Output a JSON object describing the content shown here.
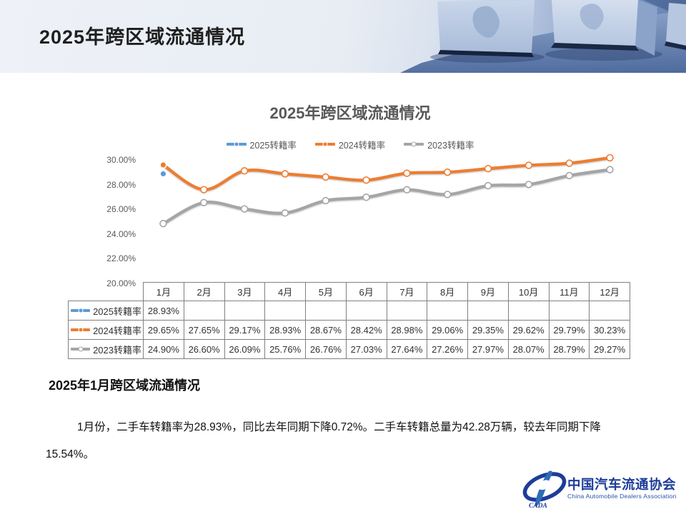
{
  "header": {
    "title": "2025年跨区域流通情况"
  },
  "chart_data": {
    "type": "line",
    "title": "2025年跨区域流通情况",
    "categories": [
      "1月",
      "2月",
      "3月",
      "4月",
      "5月",
      "6月",
      "7月",
      "8月",
      "9月",
      "10月",
      "11月",
      "12月"
    ],
    "series": [
      {
        "name": "2025转籍率",
        "color": "#5B9BD5",
        "marker": "filled",
        "values": [
          28.93,
          null,
          null,
          null,
          null,
          null,
          null,
          null,
          null,
          null,
          null,
          null
        ]
      },
      {
        "name": "2024转籍率",
        "color": "#ED7D31",
        "marker": "first-filled",
        "values": [
          29.65,
          27.65,
          29.17,
          28.93,
          28.67,
          28.42,
          28.98,
          29.06,
          29.35,
          29.62,
          29.79,
          30.23
        ]
      },
      {
        "name": "2023转籍率",
        "color": "#A5A5A5",
        "marker": "hollow",
        "values": [
          24.9,
          26.6,
          26.09,
          25.76,
          26.76,
          27.03,
          27.64,
          27.26,
          27.97,
          28.07,
          28.79,
          29.27
        ]
      }
    ],
    "ylim": [
      20,
      30
    ],
    "yticks": [
      "30.00%",
      "28.00%",
      "26.00%",
      "24.00%",
      "22.00%",
      "20.00%"
    ],
    "grid": false,
    "legend_position": "top",
    "xlabel": "",
    "ylabel": ""
  },
  "table": {
    "rows": [
      {
        "label": "2025转籍率",
        "values": [
          "28.93%",
          "",
          "",
          "",
          "",
          "",
          "",
          "",
          "",
          "",
          "",
          ""
        ]
      },
      {
        "label": "2024转籍率",
        "values": [
          "29.65%",
          "27.65%",
          "29.17%",
          "28.93%",
          "28.67%",
          "28.42%",
          "28.98%",
          "29.06%",
          "29.35%",
          "29.62%",
          "29.79%",
          "30.23%"
        ]
      },
      {
        "label": "2023转籍率",
        "values": [
          "24.90%",
          "26.60%",
          "26.09%",
          "25.76%",
          "26.76%",
          "27.03%",
          "27.64%",
          "27.26%",
          "27.97%",
          "28.07%",
          "28.79%",
          "29.27%"
        ]
      }
    ]
  },
  "body": {
    "heading": "2025年1月跨区域流通情况",
    "paragraph": "1月份，二手车转籍率为28.93%，同比去年同期下降0.72%。二手车转籍总量为42.28万辆，较去年同期下降15.54%。"
  },
  "footer": {
    "logo_mark": "CADA",
    "logo_text_cn": "中国汽车流通协会",
    "logo_text_en": "China Automobile Dealers Association"
  },
  "colors": {
    "accent_2025": "#5B9BD5",
    "accent_2024": "#ED7D31",
    "accent_2023": "#A5A5A5",
    "chart_text": "#595959",
    "logo_blue": "#1d3d99"
  }
}
